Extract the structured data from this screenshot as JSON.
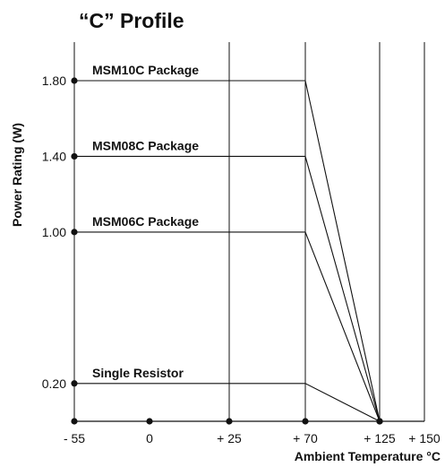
{
  "chart_data": {
    "type": "line",
    "title": "“C” Profile",
    "xlabel": "Ambient Temperature °C",
    "ylabel": "Power Rating (W)",
    "x_ticks": [
      {
        "value": -55,
        "label": "- 55"
      },
      {
        "value": 0,
        "label": "0"
      },
      {
        "value": 25,
        "label": "+ 25"
      },
      {
        "value": 70,
        "label": "+ 70"
      },
      {
        "value": 125,
        "label": "+ 125"
      },
      {
        "value": 150,
        "label": "+ 150"
      }
    ],
    "y_ticks": [
      {
        "value": 0.2,
        "label": "0.20"
      },
      {
        "value": 1.0,
        "label": "1.00"
      },
      {
        "value": 1.4,
        "label": "1.40"
      },
      {
        "value": 1.8,
        "label": "1.80"
      }
    ],
    "xlim": [
      -55,
      150
    ],
    "ylim": [
      0,
      2.0
    ],
    "grid": "vertical",
    "series": [
      {
        "name": "MSM10C Package",
        "x": [
          -55,
          70,
          125
        ],
        "y": [
          1.8,
          1.8,
          0
        ]
      },
      {
        "name": "MSM08C Package",
        "x": [
          -55,
          70,
          125
        ],
        "y": [
          1.4,
          1.4,
          0
        ]
      },
      {
        "name": "MSM06C Package",
        "x": [
          -55,
          70,
          125
        ],
        "y": [
          1.0,
          1.0,
          0
        ]
      },
      {
        "name": "Single Resistor",
        "x": [
          -55,
          70,
          125
        ],
        "y": [
          0.2,
          0.2,
          0
        ]
      }
    ],
    "colors": {
      "line": "#111111",
      "background": "#ffffff"
    }
  }
}
